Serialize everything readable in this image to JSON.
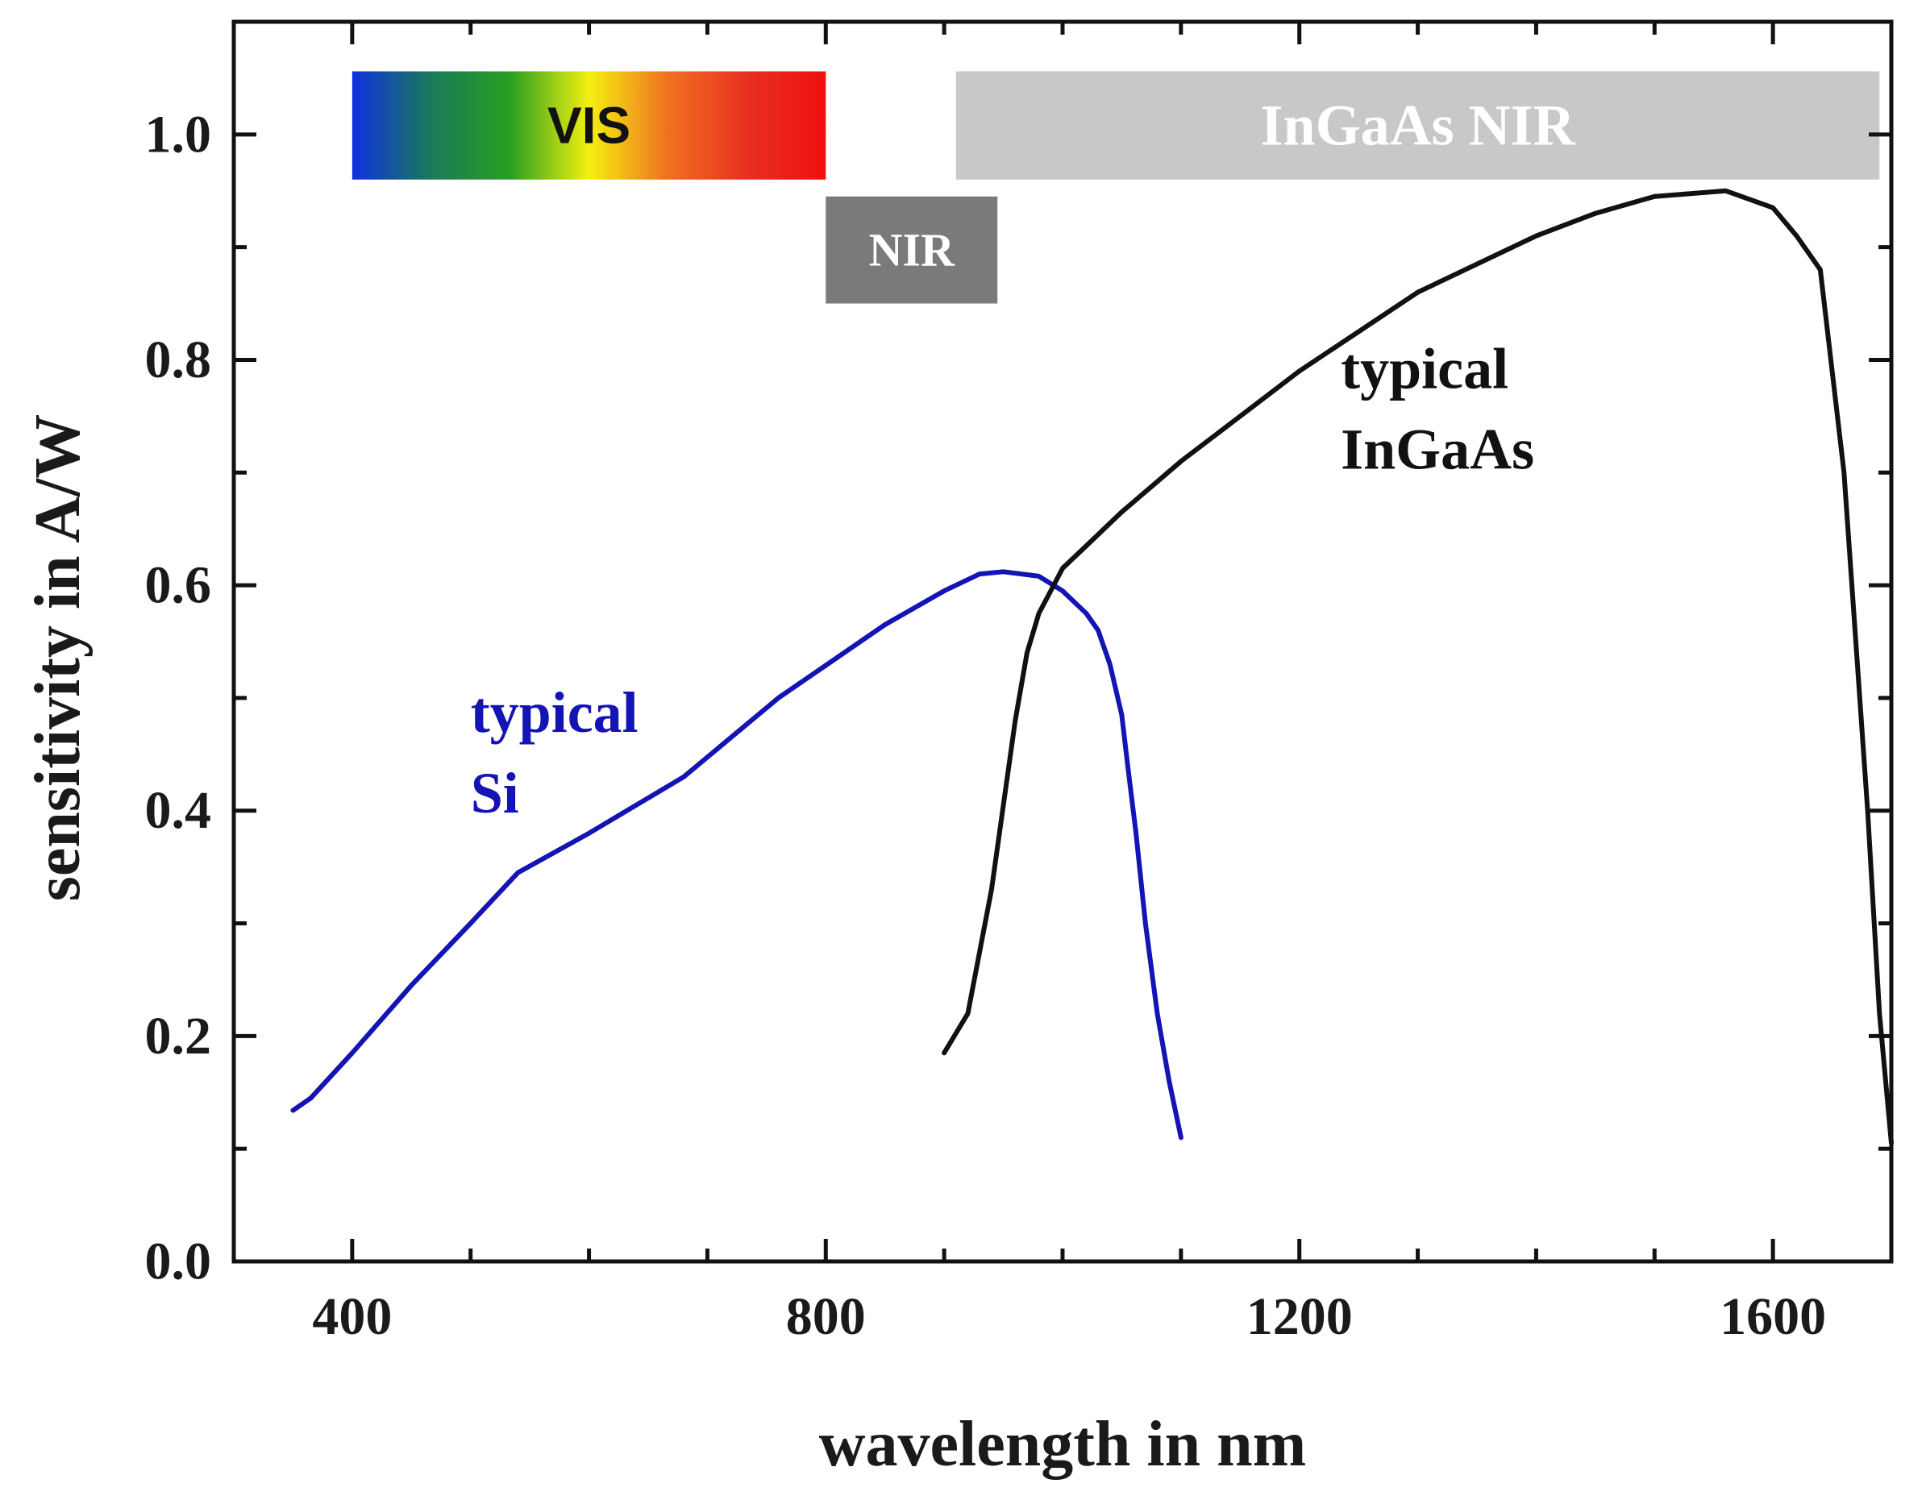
{
  "chart_data": {
    "type": "line",
    "title": "",
    "xlabel": "wavelength in nm",
    "ylabel": "sensitivity in A/W",
    "xlim": [
      300,
      1700
    ],
    "ylim": [
      0.0,
      1.1
    ],
    "x_ticks": [
      400,
      800,
      1200,
      1600
    ],
    "x_minor_ticks": [
      500,
      600,
      700,
      900,
      1000,
      1100,
      1300,
      1400,
      1500,
      1700
    ],
    "y_ticks": [
      "0.0",
      "0.2",
      "0.4",
      "0.6",
      "0.8",
      "1.0"
    ],
    "y_minor_ticks": [
      0.1,
      0.3,
      0.5,
      0.7,
      0.9
    ],
    "grid": false,
    "series": [
      {
        "name": "typical Si",
        "color": "#1414b4",
        "x": [
          350,
          365,
          400,
          450,
          500,
          540,
          600,
          680,
          760,
          850,
          900,
          930,
          950,
          980,
          1000,
          1020,
          1030,
          1040,
          1050,
          1055,
          1062,
          1070,
          1080,
          1090,
          1100
        ],
        "y": [
          0.134,
          0.145,
          0.185,
          0.245,
          0.3,
          0.345,
          0.38,
          0.43,
          0.5,
          0.565,
          0.595,
          0.61,
          0.612,
          0.608,
          0.595,
          0.575,
          0.56,
          0.53,
          0.485,
          0.44,
          0.38,
          0.3,
          0.22,
          0.16,
          0.11
        ]
      },
      {
        "name": "typical InGaAs",
        "color": "#111111",
        "x": [
          900,
          920,
          940,
          960,
          970,
          980,
          990,
          1000,
          1020,
          1050,
          1100,
          1150,
          1200,
          1300,
          1400,
          1450,
          1500,
          1560,
          1600,
          1620,
          1640,
          1660,
          1680,
          1690,
          1700
        ],
        "y": [
          0.185,
          0.22,
          0.33,
          0.48,
          0.54,
          0.575,
          0.595,
          0.615,
          0.635,
          0.665,
          0.71,
          0.75,
          0.79,
          0.86,
          0.91,
          0.93,
          0.945,
          0.95,
          0.935,
          0.91,
          0.88,
          0.7,
          0.4,
          0.22,
          0.105
        ]
      }
    ],
    "annotations": [
      {
        "text_line1": "typical",
        "text_line2": "Si",
        "color": "#1414b4",
        "x": 500,
        "y": 0.47
      },
      {
        "text_line1": "typical",
        "text_line2": "InGaAs",
        "color": "#111111",
        "x": 1235,
        "y": 0.775
      }
    ],
    "bands": [
      {
        "label": "VIS",
        "x_start": 400,
        "x_end": 800,
        "y_bottom": 0.96,
        "y_top": 1.056,
        "fill": "gradient",
        "text_color": "#111111"
      },
      {
        "label": "NIR",
        "x_start": 800,
        "x_end": 945,
        "y_bottom": 0.85,
        "y_top": 0.945,
        "fill": "#7a7a7a",
        "text_color": "#ffffff"
      },
      {
        "label": "InGaAs NIR",
        "x_start": 910,
        "x_end": 1690,
        "y_bottom": 0.96,
        "y_top": 1.056,
        "fill": "#c8c8c8",
        "text_color": "#ffffff"
      }
    ],
    "vis_gradient_colors": [
      "#1030e0",
      "#1a7a5a",
      "#28a020",
      "#f4f010",
      "#f07020",
      "#e83020",
      "#f01010"
    ]
  }
}
